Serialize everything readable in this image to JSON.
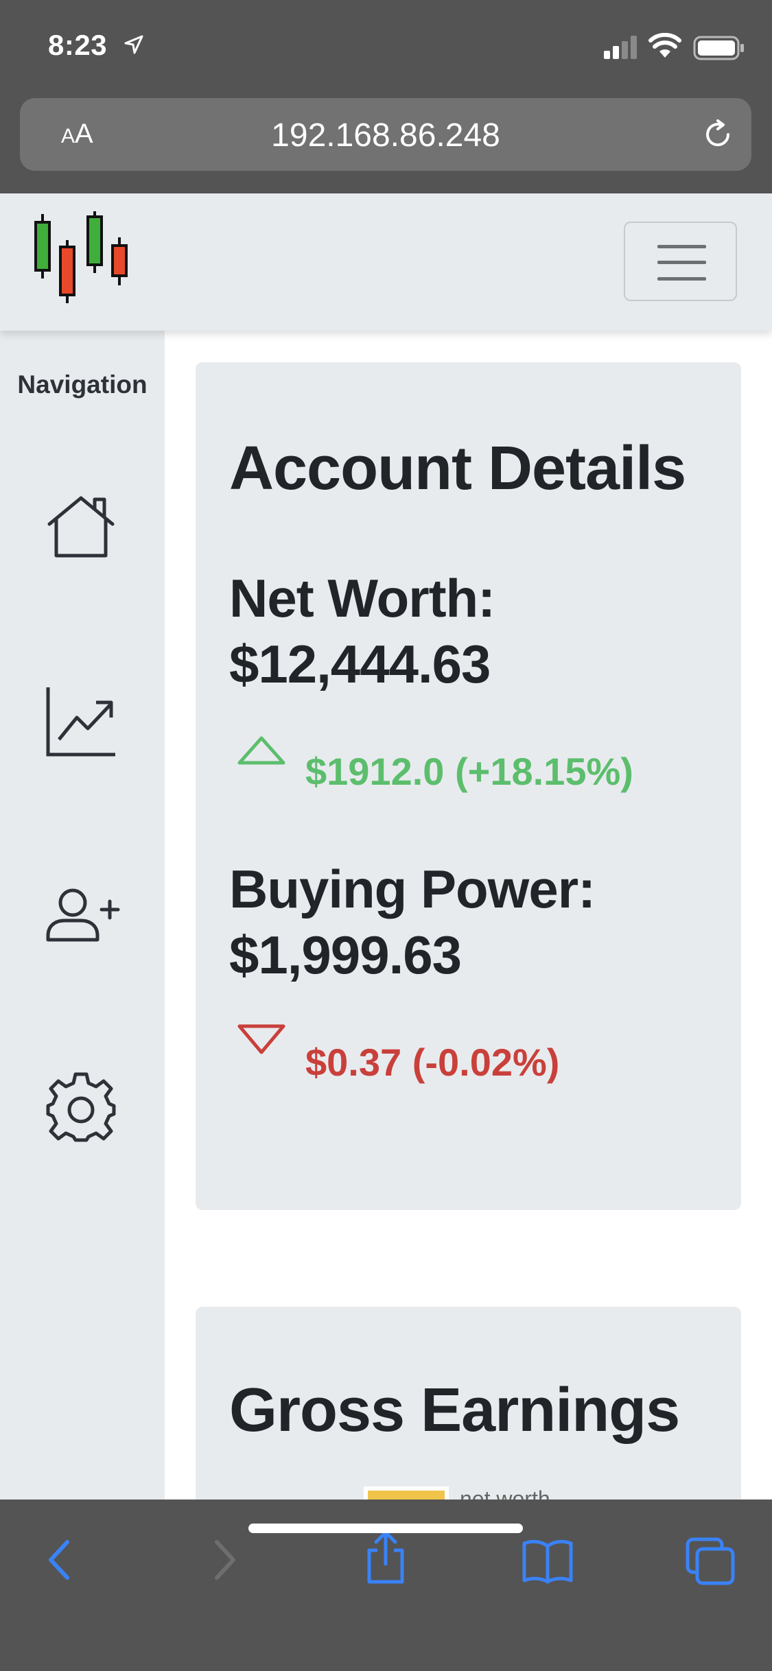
{
  "status_bar": {
    "time": "8:23"
  },
  "url_bar": {
    "text_size_label_small": "A",
    "text_size_label_large": "A",
    "url": "192.168.86.248"
  },
  "colors": {
    "up": "#5cbe6d",
    "down": "#c9403b",
    "chrome": "#545454",
    "panel": "#e8ebee",
    "safari_blue": "#3a82f7"
  },
  "sidebar": {
    "title": "Navigation",
    "items": [
      {
        "icon": "home-icon"
      },
      {
        "icon": "chart-line-icon"
      },
      {
        "icon": "add-user-icon"
      },
      {
        "icon": "gear-icon"
      }
    ]
  },
  "account_card": {
    "title": "Account Details",
    "net_worth": {
      "label": "Net Worth:",
      "value": "$12,444.63",
      "change": "$1912.0 (+18.15%)",
      "direction": "up"
    },
    "buying_power": {
      "label": "Buying Power:",
      "value": "$1,999.63",
      "change": "$0.37 (-0.02%)",
      "direction": "down"
    }
  },
  "earnings_card": {
    "title": "Gross Earnings",
    "legend": "net worth"
  }
}
